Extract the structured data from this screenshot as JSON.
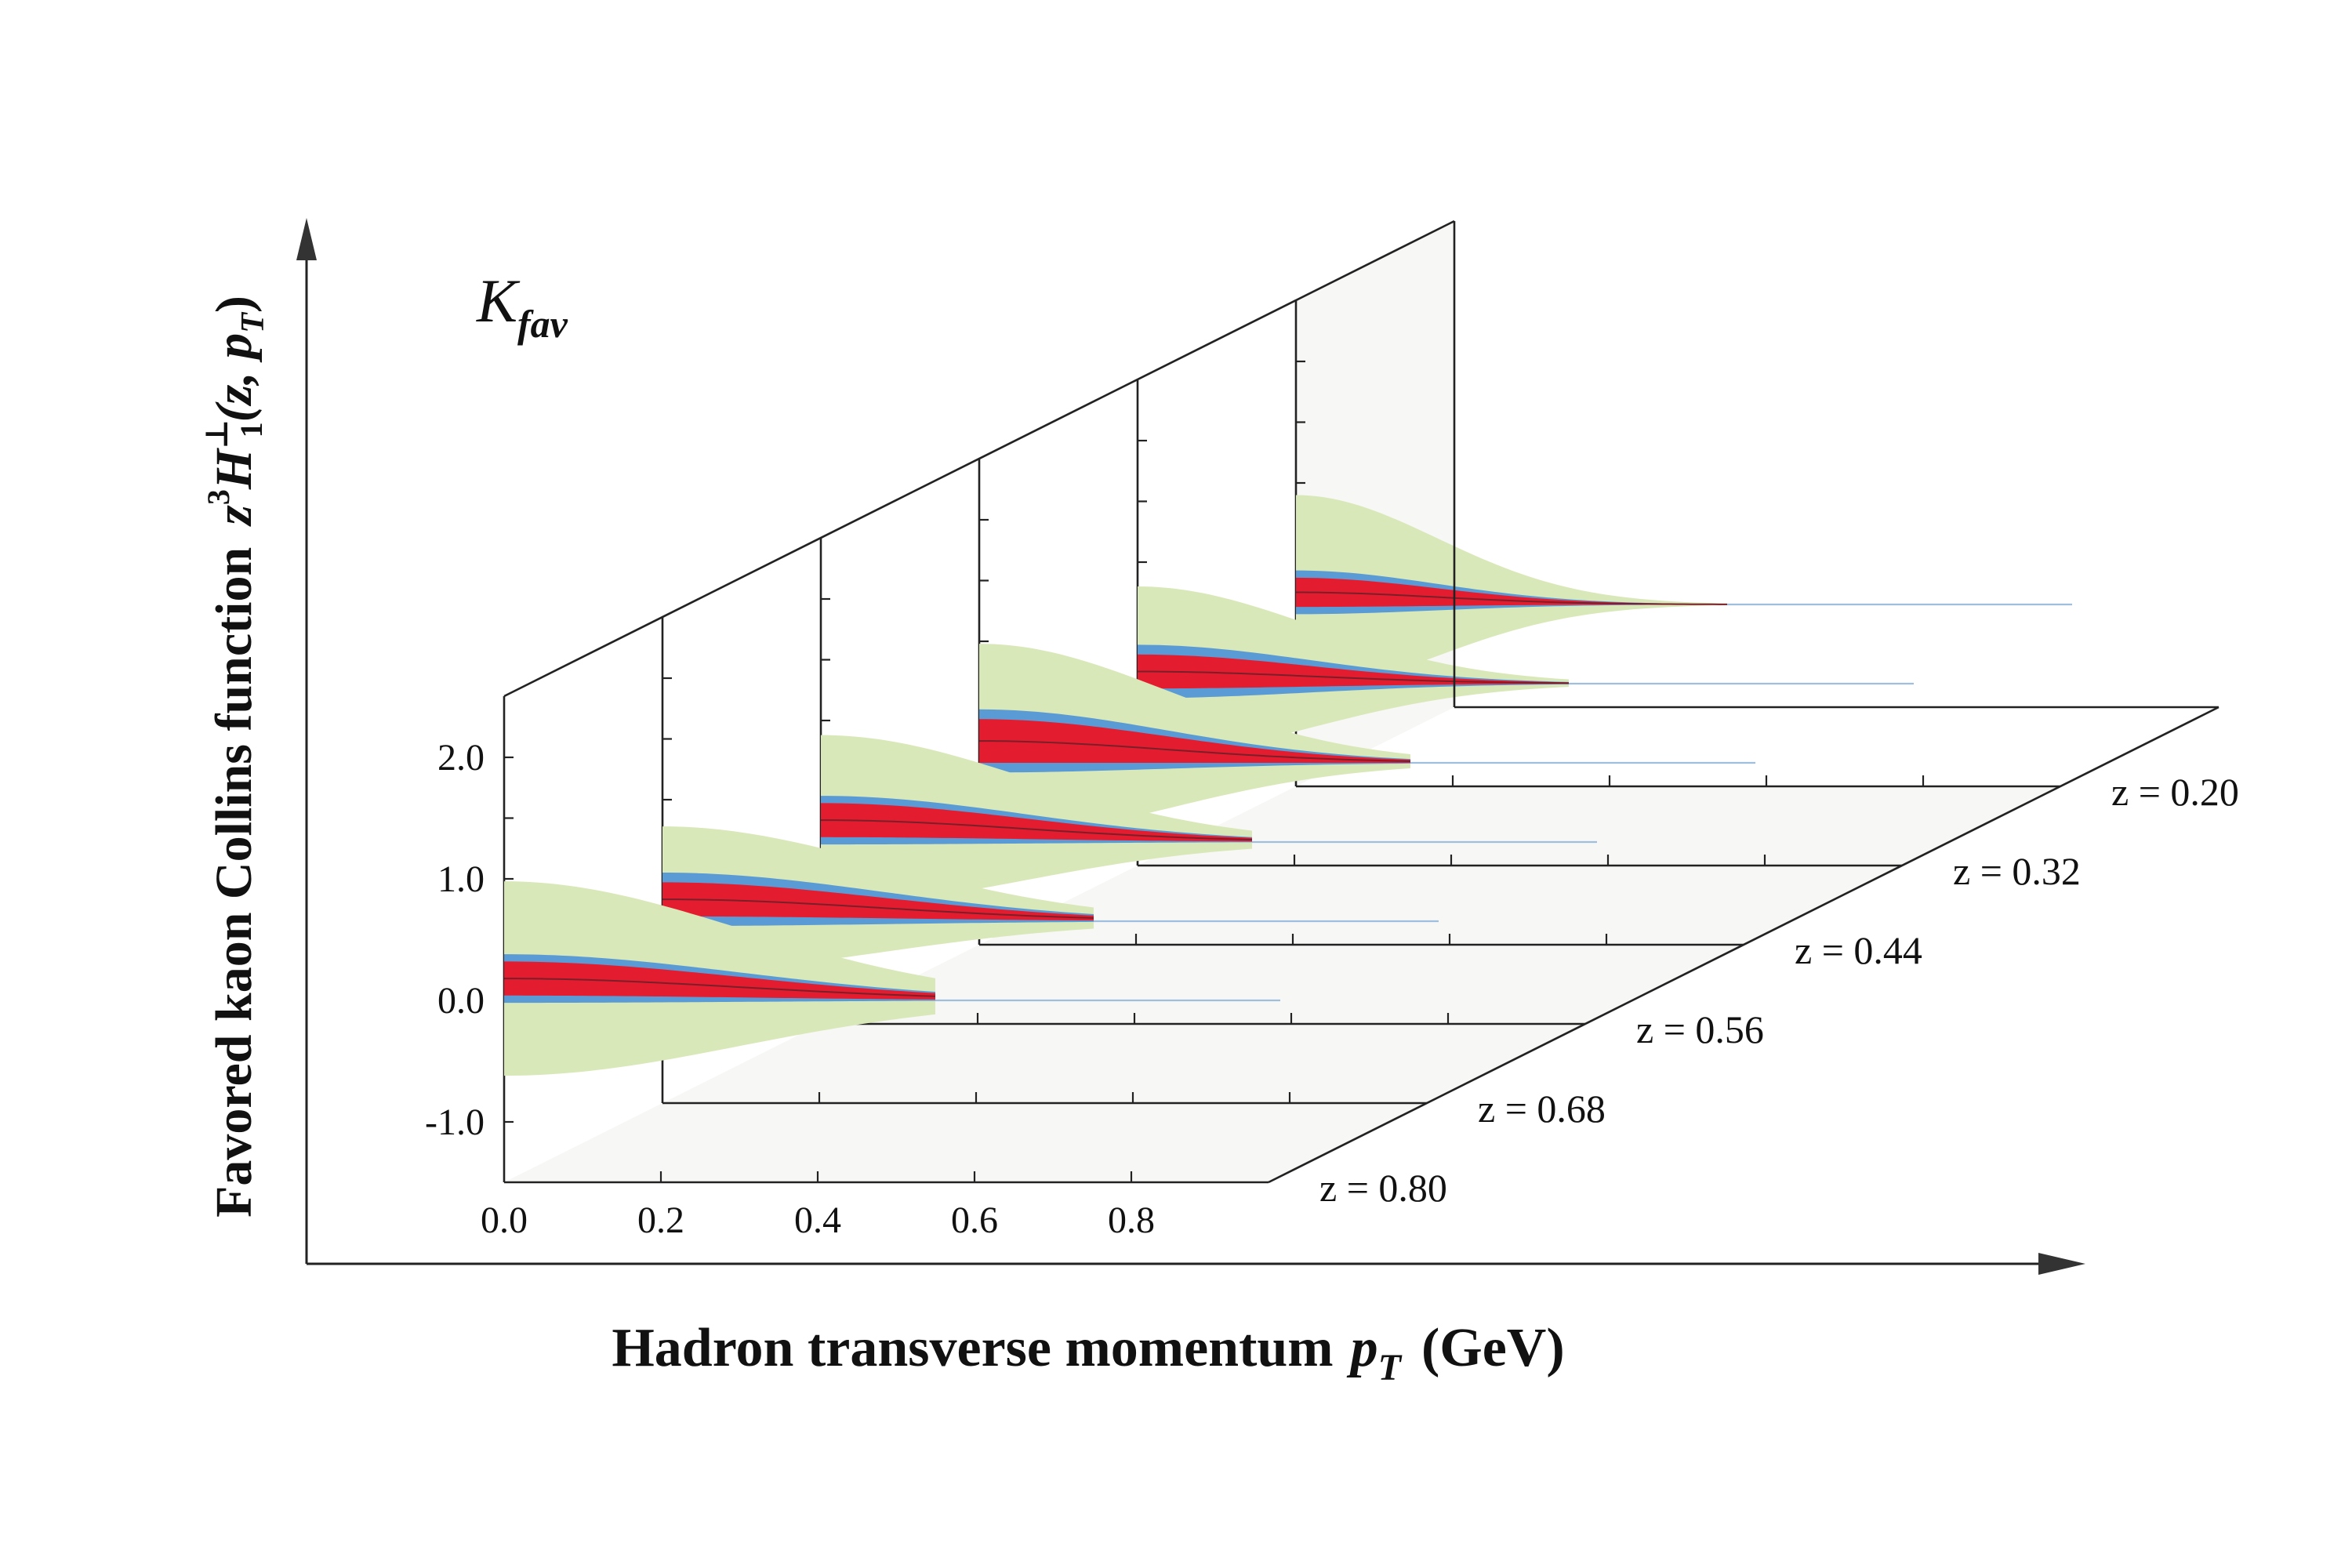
{
  "chart_data": {
    "type": "area",
    "title": "K",
    "title_subscript": "fav",
    "xlabel": "Hadron transverse momentum",
    "xlabel_var": "p",
    "xlabel_sub": "T",
    "xlabel_unit": "(GeV)",
    "ylabel": "Favored kaon Collins function",
    "ylabel_formula": {
      "a": "z",
      "b": "3",
      "c": "H",
      "d": "⊥",
      "e": "1",
      "f": "(z, p",
      "g": "T",
      "h": ")"
    },
    "x_ticks": [
      "0.0",
      "0.2",
      "0.4",
      "0.6",
      "0.8"
    ],
    "y_ticks": [
      "-1.0",
      "0.0",
      "1.0",
      "2.0"
    ],
    "xlim": [
      0.0,
      1.0
    ],
    "ylim": [
      -1.5,
      4.0
    ],
    "z_labels": [
      "z = 0.80",
      "z = 0.68",
      "z = 0.56",
      "z = 0.44",
      "z = 0.32",
      "z = 0.20"
    ],
    "z_values": [
      0.8,
      0.68,
      0.56,
      0.44,
      0.32,
      0.2
    ],
    "bands": [
      {
        "name": "",
        "color": "#d9e8b8"
      },
      {
        "name": "",
        "color": "#5b9bd5"
      },
      {
        "name": "",
        "color": "#e31d2f"
      }
    ],
    "series": [
      {
        "z": 0.8,
        "peak": 0.18,
        "red_width": 0.14,
        "blue_width": 0.2,
        "green_width": 0.8,
        "decay": 0.3
      },
      {
        "z": 0.68,
        "peak": 0.18,
        "red_width": 0.14,
        "blue_width": 0.22,
        "green_width": 0.6,
        "decay": 0.28
      },
      {
        "z": 0.56,
        "peak": 0.18,
        "red_width": 0.14,
        "blue_width": 0.2,
        "green_width": 0.7,
        "decay": 0.26
      },
      {
        "z": 0.44,
        "peak": 0.18,
        "red_width": 0.18,
        "blue_width": 0.26,
        "green_width": 0.8,
        "decay": 0.24
      },
      {
        "z": 0.32,
        "peak": 0.1,
        "red_width": 0.14,
        "blue_width": 0.22,
        "green_width": 0.7,
        "decay": 0.22
      },
      {
        "z": 0.2,
        "peak": 0.1,
        "red_width": 0.12,
        "blue_width": 0.18,
        "green_width": 0.8,
        "decay": 0.18
      }
    ]
  }
}
